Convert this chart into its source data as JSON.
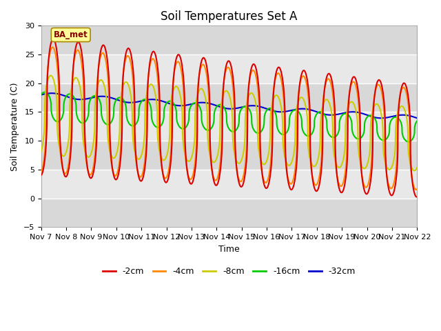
{
  "title": "Soil Temperatures Set A",
  "xlabel": "Time",
  "ylabel": "Soil Temperature (C)",
  "ylim": [
    -5,
    30
  ],
  "xlim": [
    0,
    15
  ],
  "x_tick_labels": [
    "Nov 7",
    "Nov 8",
    "Nov 9",
    "Nov 10",
    "Nov 11",
    "Nov 12",
    "Nov 13",
    "Nov 14",
    "Nov 15",
    "Nov 16",
    "Nov 17",
    "Nov 18",
    "Nov 19",
    "Nov 20",
    "Nov 21",
    "Nov 22"
  ],
  "colors": {
    "-2cm": "#dd0000",
    "-4cm": "#ff8800",
    "-8cm": "#cccc00",
    "-16cm": "#00cc00",
    "-32cm": "#0000cc"
  },
  "annotation_text": "BA_met",
  "annotation_bg": "#ffff99",
  "annotation_border": "#aa8800",
  "bg_bands": [
    {
      "ymin": -5,
      "ymax": 0,
      "color": "#d8d8d8"
    },
    {
      "ymin": 0,
      "ymax": 5,
      "color": "#e8e8e8"
    },
    {
      "ymin": 5,
      "ymax": 10,
      "color": "#d8d8d8"
    },
    {
      "ymin": 10,
      "ymax": 15,
      "color": "#e8e8e8"
    },
    {
      "ymin": 15,
      "ymax": 20,
      "color": "#d8d8d8"
    },
    {
      "ymin": 20,
      "ymax": 25,
      "color": "#e8e8e8"
    },
    {
      "ymin": 25,
      "ymax": 30,
      "color": "#d8d8d8"
    }
  ],
  "title_fontsize": 12,
  "axis_label_fontsize": 9,
  "tick_fontsize": 8
}
